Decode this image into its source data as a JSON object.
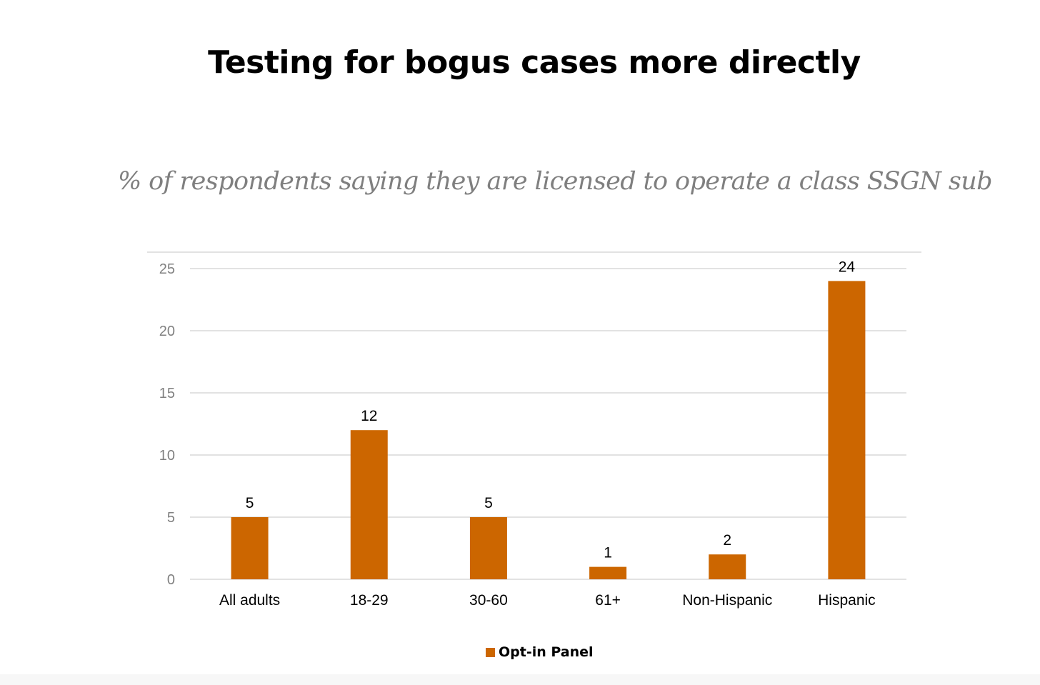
{
  "chart_data": {
    "type": "bar",
    "title": "Testing for bogus cases more directly",
    "subtitle": "% of respondents saying they are licensed to operate a class SSGN sub",
    "categories": [
      "All adults",
      "18-29",
      "30-60",
      "61+",
      "Non-Hispanic",
      "Hispanic"
    ],
    "series": [
      {
        "name": "Opt-in Panel",
        "values": [
          5,
          12,
          5,
          1,
          2,
          24
        ],
        "color": "#cc6600"
      }
    ],
    "yticks": [
      "0",
      "5",
      "10",
      "15",
      "20",
      "25"
    ],
    "ylim": [
      0,
      25
    ],
    "grid": true,
    "legend_position": "bottom"
  }
}
